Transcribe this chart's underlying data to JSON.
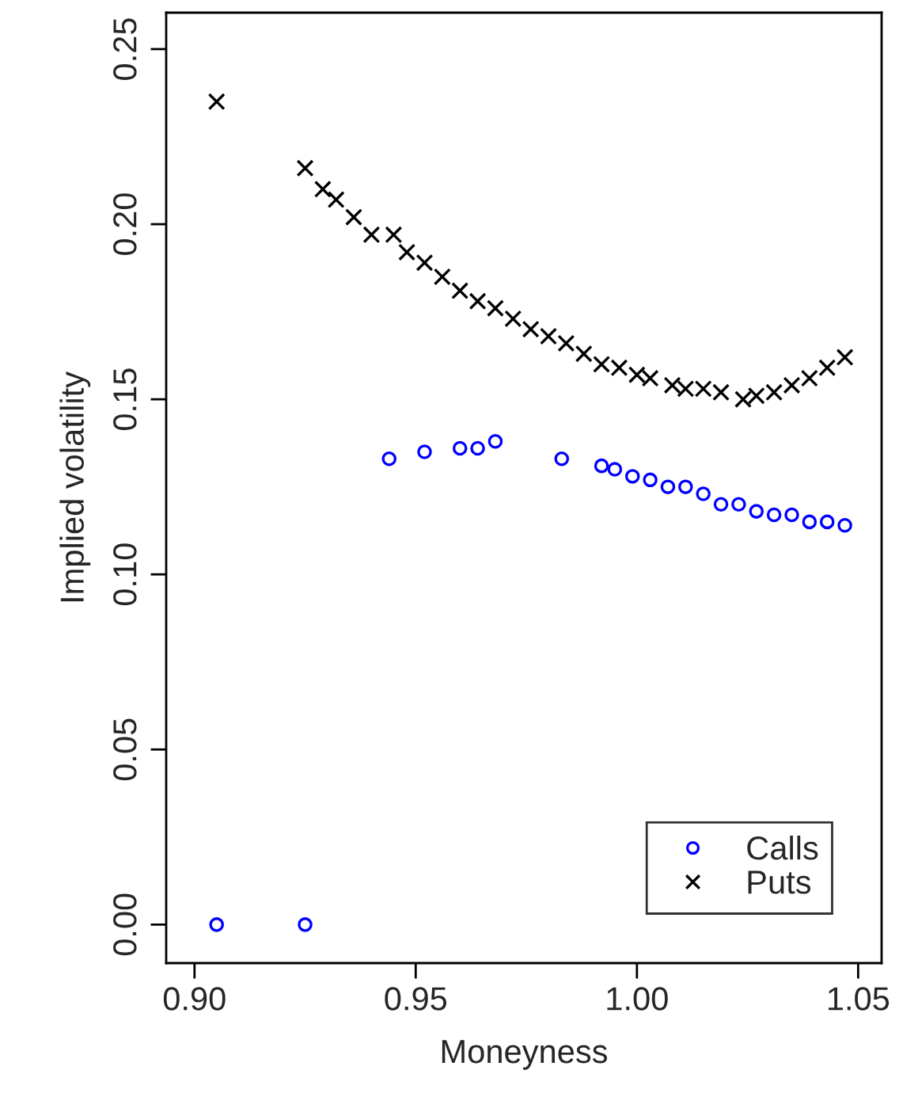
{
  "chart_data": {
    "type": "scatter",
    "xlabel": "Moneyness",
    "ylabel": "Implied volatility",
    "xlim": [
      0.8936,
      1.0553
    ],
    "ylim": [
      -0.011,
      0.2604
    ],
    "xticks": [
      {
        "value": 0.9,
        "label": "0.90"
      },
      {
        "value": 0.95,
        "label": "0.95"
      },
      {
        "value": 1.0,
        "label": "1.00"
      },
      {
        "value": 1.05,
        "label": "1.05"
      }
    ],
    "yticks": [
      {
        "value": 0,
        "label": "0.00"
      },
      {
        "value": 0.05,
        "label": "0.05"
      },
      {
        "value": 0.1,
        "label": "0.10"
      },
      {
        "value": 0.15,
        "label": "0.15"
      },
      {
        "value": 0.2,
        "label": "0.20"
      },
      {
        "value": 0.25,
        "label": "0.25"
      }
    ],
    "grid": false,
    "legend": "bottom right",
    "series": [
      {
        "name": "Calls",
        "color": "#0000ff",
        "marker": "circle",
        "x": [
          0.905,
          0.925,
          0.944,
          0.952,
          0.96,
          0.964,
          0.968,
          0.983,
          0.992,
          0.995,
          0.999,
          1.003,
          1.007,
          1.011,
          1.015,
          1.019,
          1.023,
          1.027,
          1.031,
          1.035,
          1.039,
          1.043,
          1.047
        ],
        "values": [
          0.0,
          0.0,
          0.133,
          0.135,
          0.136,
          0.136,
          0.138,
          0.133,
          0.131,
          0.13,
          0.128,
          0.127,
          0.125,
          0.125,
          0.123,
          0.12,
          0.12,
          0.118,
          0.117,
          0.117,
          0.115,
          0.115,
          0.114
        ]
      },
      {
        "name": "Puts",
        "color": "#000000",
        "marker": "cross",
        "x": [
          0.905,
          0.925,
          0.929,
          0.932,
          0.936,
          0.94,
          0.945,
          0.948,
          0.952,
          0.956,
          0.96,
          0.964,
          0.968,
          0.972,
          0.976,
          0.98,
          0.984,
          0.988,
          0.992,
          0.996,
          1.0,
          1.003,
          1.008,
          1.011,
          1.015,
          1.019,
          1.024,
          1.027,
          1.031,
          1.035,
          1.039,
          1.043,
          1.047
        ],
        "values": [
          0.235,
          0.216,
          0.21,
          0.207,
          0.202,
          0.197,
          0.197,
          0.192,
          0.189,
          0.185,
          0.181,
          0.178,
          0.176,
          0.173,
          0.17,
          0.168,
          0.166,
          0.163,
          0.16,
          0.159,
          0.157,
          0.156,
          0.154,
          0.153,
          0.153,
          0.152,
          0.15,
          0.151,
          0.152,
          0.154,
          0.156,
          0.159,
          0.162
        ]
      }
    ]
  }
}
